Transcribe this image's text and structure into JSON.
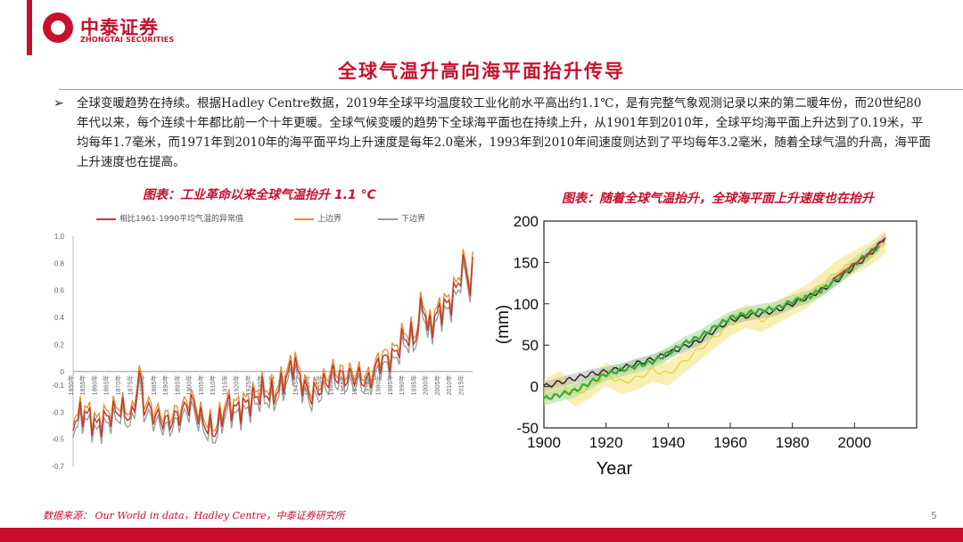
{
  "header": {
    "logo_cn": "中泰证券",
    "logo_en": "ZHONGTAI SECURITIES",
    "title": "全球气温升高向海平面抬升传导"
  },
  "body": {
    "bullet": "➢",
    "paragraph": "全球变暖趋势在持续。根据Hadley Centre数据，2019年全球平均温度较工业化前水平高出约1.1℃，是有完整气象观测记录以来的第二暖年份，而20世纪80年代以来，每个连续十年都比前一个十年更暖。全球气候变暖的趋势下全球海平面也在持续上升，从1901年到2010年，全球平均海平面上升达到了0.19米，平均每年1.7毫米，而1971年到2010年的海平面平均上升速度是每年2.0毫米，1993年到2010年间速度则达到了平均每年3.2毫米，随着全球气温的升高，海平面上升速度也在提高。"
  },
  "footer": {
    "source": "数据来源： Our World in data，Hadley Centre，中泰证券研究所",
    "page": "5"
  },
  "chart_data": [
    {
      "type": "line",
      "caption": "图表：工业革命以来全球气温抬升 1.1 °C",
      "title": "",
      "ylim": [
        -0.7,
        1.0
      ],
      "yticks": [
        "1.0",
        "0.8",
        "0.6",
        "0.4",
        "0.2",
        "0",
        "-0.1",
        "-0.3",
        "-0.5",
        "-0.7"
      ],
      "yticks_values": [
        1.0,
        0.8,
        0.6,
        0.4,
        0.2,
        0,
        -0.1,
        -0.3,
        -0.5,
        -0.7
      ],
      "xticks": [
        "1850年",
        "1855年",
        "1860年",
        "1865年",
        "1870年",
        "1875年",
        "1880年",
        "1885年",
        "1890年",
        "1895年",
        "1900年",
        "1905年",
        "1910年",
        "1915年",
        "1920年",
        "1925年",
        "1930年",
        "1935年",
        "1940年",
        "1945年",
        "1950年",
        "1955年",
        "1960年",
        "1965年",
        "1970年",
        "1975年",
        "1980年",
        "1985年",
        "1990年",
        "1995年",
        "2000年",
        "2005年",
        "2010年",
        "2015年"
      ],
      "legend_position": "top",
      "colors": {
        "anomaly": "#c0392b",
        "upper": "#e88a2e",
        "lower": "#999999"
      },
      "series": [
        {
          "name": "相比1961-1990平均气温的异常值",
          "key": "anomaly"
        },
        {
          "name": "上边界",
          "key": "upper"
        },
        {
          "name": "下边界",
          "key": "lower"
        }
      ],
      "x": [
        1850,
        1855,
        1860,
        1865,
        1870,
        1875,
        1878,
        1880,
        1885,
        1890,
        1895,
        1900,
        1905,
        1910,
        1915,
        1920,
        1925,
        1930,
        1935,
        1940,
        1944,
        1945,
        1950,
        1955,
        1960,
        1965,
        1970,
        1975,
        1980,
        1985,
        1990,
        1995,
        1998,
        2000,
        2005,
        2010,
        2015,
        2016,
        2018,
        2019
      ],
      "values": [
        -0.37,
        -0.3,
        -0.4,
        -0.33,
        -0.28,
        -0.35,
        -0.02,
        -0.25,
        -0.33,
        -0.38,
        -0.32,
        -0.22,
        -0.38,
        -0.45,
        -0.25,
        -0.28,
        -0.22,
        -0.15,
        -0.18,
        -0.05,
        0.08,
        -0.02,
        -0.18,
        -0.12,
        -0.02,
        -0.05,
        -0.04,
        -0.08,
        0.08,
        0.1,
        0.25,
        0.25,
        0.53,
        0.3,
        0.45,
        0.52,
        0.76,
        0.8,
        0.6,
        0.74
      ]
    },
    {
      "type": "line",
      "caption": "图表：随着全球气温抬升，全球海平面上升速度也在抬升",
      "title": "",
      "xlabel": "Year",
      "ylabel": "(mm)",
      "xlim": [
        1900,
        2020
      ],
      "ylim": [
        -50,
        200
      ],
      "xticks": [
        1900,
        1920,
        1940,
        1960,
        1980,
        2000
      ],
      "yticks": [
        -50,
        0,
        50,
        100,
        150,
        200
      ],
      "grid": false,
      "colors": {
        "black": "#222222",
        "green": "#3aaa35",
        "yellow": "#e8d230",
        "red": "#d03030",
        "band_gray": "#b5b5b5",
        "band_green": "#a9d89a",
        "band_yellow": "#f3e27a"
      },
      "series": [
        {
          "color": "yellow",
          "x": [
            1900,
            1905,
            1910,
            1915,
            1920,
            1925,
            1930,
            1935,
            1940,
            1945,
            1950,
            1955,
            1960,
            1965,
            1970,
            1975,
            1980,
            1985,
            1990,
            1995,
            2000,
            2005,
            2010
          ],
          "values": [
            -5,
            5,
            -10,
            0,
            15,
            5,
            10,
            20,
            15,
            30,
            45,
            60,
            75,
            85,
            80,
            90,
            100,
            110,
            125,
            140,
            150,
            160,
            175
          ]
        },
        {
          "color": "black",
          "x": [
            1900,
            1905,
            1910,
            1915,
            1920,
            1925,
            1930,
            1935,
            1940,
            1945,
            1950,
            1955,
            1960,
            1965,
            1970,
            1975,
            1980,
            1985,
            1990,
            1995,
            2000,
            2005,
            2010
          ],
          "values": [
            0,
            5,
            10,
            15,
            18,
            22,
            28,
            33,
            40,
            48,
            55,
            68,
            80,
            85,
            88,
            92,
            100,
            108,
            118,
            130,
            145,
            160,
            180
          ]
        },
        {
          "color": "green",
          "x": [
            1900,
            1905,
            1910,
            1915,
            1920,
            1925,
            1930,
            1935,
            1940,
            1945,
            1950,
            1955,
            1960,
            1965,
            1970,
            1975,
            1980,
            1985,
            1990,
            1995,
            2000,
            2005,
            2008
          ],
          "values": [
            -15,
            -10,
            -5,
            5,
            15,
            20,
            25,
            30,
            40,
            52,
            60,
            72,
            83,
            88,
            92,
            95,
            103,
            108,
            118,
            132,
            148,
            162,
            170
          ]
        },
        {
          "color": "red",
          "x": [
            1993,
            1995,
            2000,
            2005,
            2010
          ],
          "values": [
            130,
            135,
            148,
            162,
            180
          ]
        }
      ]
    }
  ]
}
